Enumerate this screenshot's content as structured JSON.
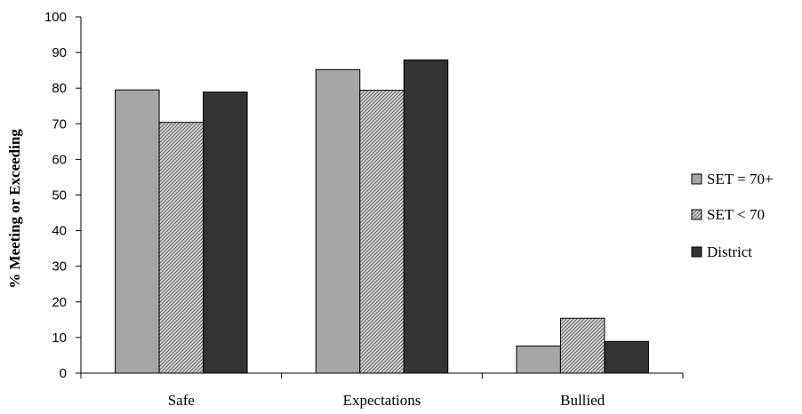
{
  "chart_data": {
    "type": "bar",
    "categories": [
      "Safe",
      "Expectations",
      "Bullied"
    ],
    "series": [
      {
        "name": "SET = 70+",
        "values": [
          79.5,
          85.2,
          7.6
        ],
        "color": "#a6a6a6",
        "pattern": "solid"
      },
      {
        "name": "SET < 70",
        "values": [
          70.4,
          79.4,
          15.4
        ],
        "color": "#b0b0b0",
        "pattern": "diagonal-hatch"
      },
      {
        "name": "District",
        "values": [
          78.9,
          87.9,
          8.9
        ],
        "color": "#333333",
        "pattern": "solid"
      }
    ],
    "ylabel": "% Meeting or Exceeding",
    "xlabel": "",
    "ylim": [
      0,
      100
    ],
    "yticks": [
      "0",
      "10",
      "20",
      "30",
      "40",
      "50",
      "60",
      "70",
      "80",
      "90",
      "100"
    ],
    "grid": false,
    "legend_position": "right"
  }
}
